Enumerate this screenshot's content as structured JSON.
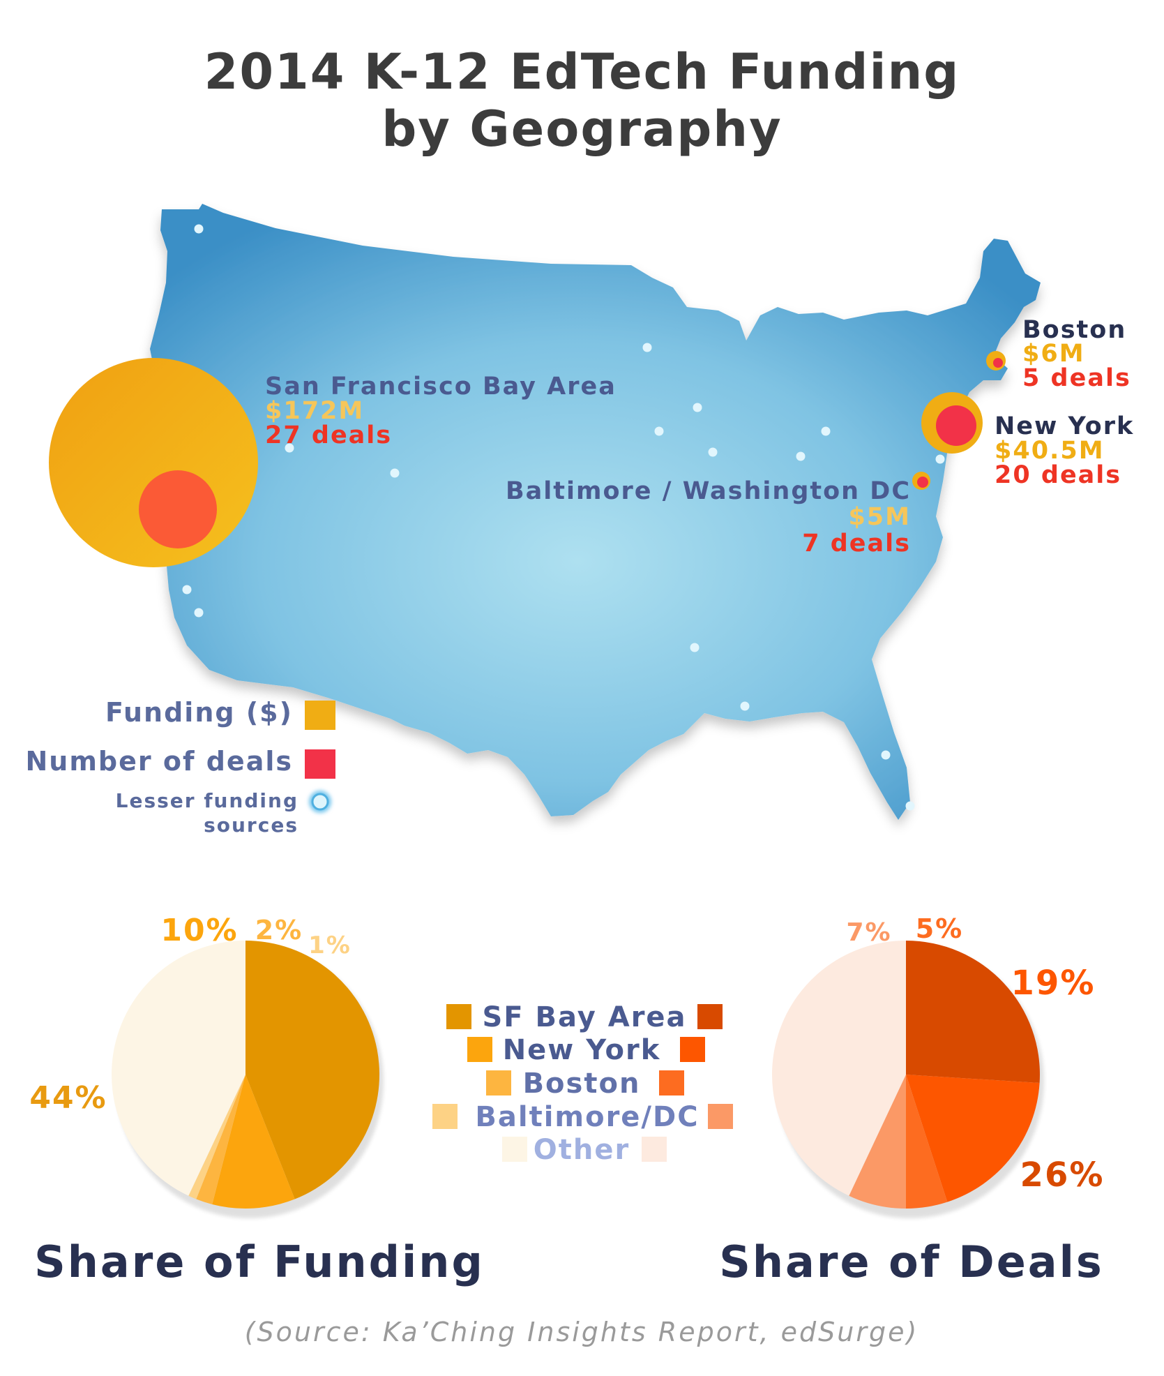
{
  "title": {
    "line1": "2014 K-12 EdTech Funding",
    "line2": "by Geography"
  },
  "colors": {
    "funding": "#f0ad14",
    "deals": "#f23248",
    "map_dark": "#3a92c8",
    "map_light": "#a9dcee",
    "label_blue": "#5a6a9c",
    "navy": "#283050"
  },
  "locations": [
    {
      "id": "sf",
      "name": "San Francisco Bay Area",
      "funding": "$172M",
      "deals": "27 deals",
      "funding_musd": 172,
      "deal_count": 27
    },
    {
      "id": "boston",
      "name": "Boston",
      "funding": "$6M",
      "deals": "5 deals",
      "funding_musd": 6,
      "deal_count": 5
    },
    {
      "id": "ny",
      "name": "New York",
      "funding": "$40.5M",
      "deals": "20 deals",
      "funding_musd": 40.5,
      "deal_count": 20
    },
    {
      "id": "dc",
      "name": "Baltimore / Washington DC",
      "funding": "$5M",
      "deals": "7 deals",
      "funding_musd": 5,
      "deal_count": 7
    }
  ],
  "map_legend": {
    "funding": "Funding ($)",
    "deals": "Number of deals",
    "lesser_line1": "Lesser funding",
    "lesser_line2": "sources"
  },
  "chart_data": [
    {
      "type": "pie",
      "title": "Share of Funding",
      "categories": [
        "SF Bay Area",
        "New York",
        "Boston",
        "Baltimore/DC",
        "Other"
      ],
      "values": [
        44,
        10,
        2,
        1,
        43
      ],
      "labels": [
        "44%",
        "10%",
        "2%",
        "1%",
        ""
      ],
      "colors": [
        "#e39500",
        "#fca50d",
        "#fdb540",
        "#fdd285",
        "#fdf5e5"
      ]
    },
    {
      "type": "pie",
      "title": "Share of Deals",
      "categories": [
        "SF Bay Area",
        "New York",
        "Boston",
        "Baltimore/DC",
        "Other"
      ],
      "values": [
        26,
        19,
        5,
        7,
        43
      ],
      "labels": [
        "26%",
        "19%",
        "5%",
        "7%",
        ""
      ],
      "colors": [
        "#d84a00",
        "#fd5600",
        "#fd6c20",
        "#fb9966",
        "#fdeadf"
      ]
    }
  ],
  "pie_legend": {
    "items": [
      "SF Bay Area",
      "New York",
      "Boston",
      "Baltimore/DC",
      "Other"
    ],
    "label_colors": [
      "#4a5a90",
      "#4a5a90",
      "#6070a8",
      "#7080bb",
      "#a0b0e0"
    ]
  },
  "source": "(Source: Ka’Ching Insights Report, edSurge)"
}
